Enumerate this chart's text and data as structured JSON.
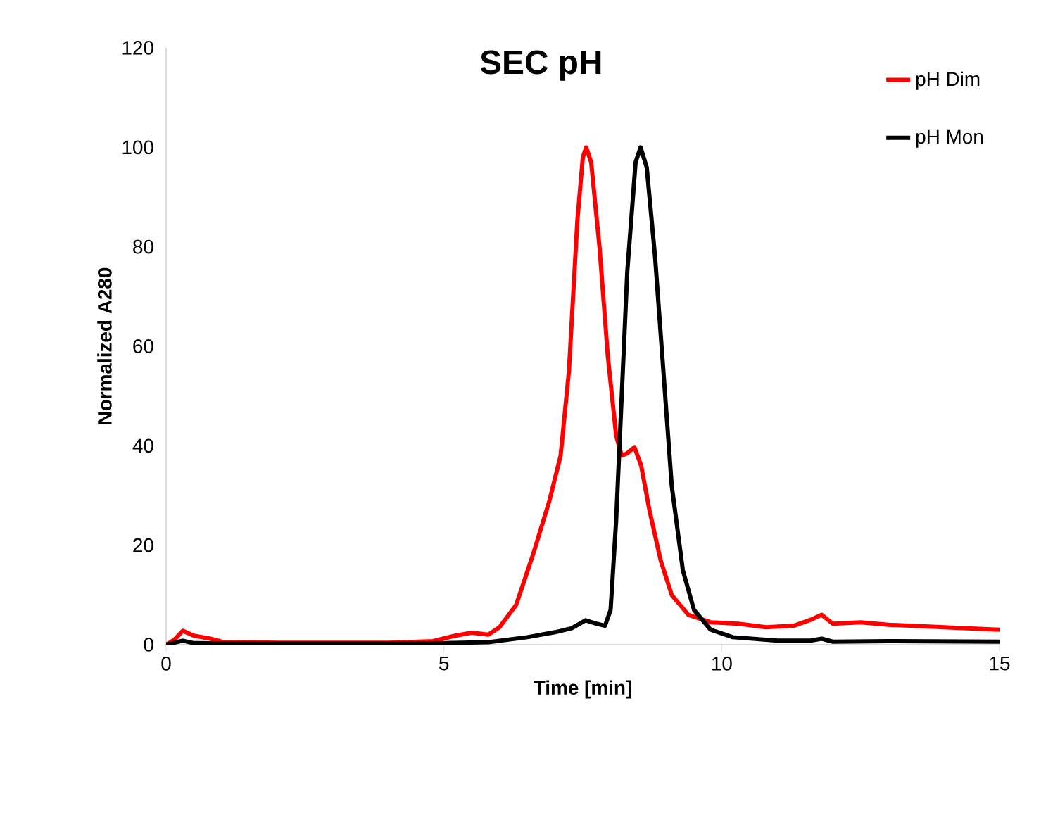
{
  "chart_data": {
    "type": "line",
    "title": "SEC pH",
    "xlabel": "Time [min]",
    "ylabel": "Normalized A280",
    "xlim": [
      0,
      15
    ],
    "xticks": [
      0,
      5,
      10,
      15
    ],
    "ylim": [
      0,
      120
    ],
    "yticks": [
      0,
      20,
      40,
      60,
      80,
      100,
      120
    ],
    "grid": false,
    "legend": "top right",
    "marker": "none",
    "line_style": "solid",
    "series": [
      {
        "name": "pH Dim",
        "color": "#ff0000",
        "x": [
          0,
          0.15,
          0.3,
          0.5,
          0.8,
          1,
          2,
          3,
          4,
          4.8,
          5.2,
          5.5,
          5.8,
          6.0,
          6.3,
          6.6,
          6.9,
          7.1,
          7.25,
          7.4,
          7.5,
          7.56,
          7.65,
          7.8,
          7.95,
          8.1,
          8.2,
          8.3,
          8.43,
          8.55,
          8.7,
          8.9,
          9.1,
          9.4,
          9.8,
          10.3,
          10.8,
          11.3,
          11.6,
          11.8,
          12.0,
          12.5,
          13,
          14,
          15
        ],
        "values": [
          0,
          1,
          2.8,
          1.8,
          1.2,
          0.6,
          0.4,
          0.4,
          0.4,
          0.7,
          1.8,
          2.4,
          2.0,
          3.5,
          8,
          18,
          29,
          38,
          55,
          85,
          98,
          100,
          97,
          80,
          58,
          42,
          38,
          38.5,
          39.7,
          36,
          27,
          17,
          10,
          6,
          4.5,
          4.2,
          3.5,
          3.8,
          5,
          6,
          4.2,
          4.5,
          4,
          3.5,
          3
        ]
      },
      {
        "name": "pH Mon",
        "color": "#000000",
        "x": [
          0,
          0.3,
          0.5,
          2,
          4,
          5,
          5.8,
          6.5,
          7.0,
          7.3,
          7.55,
          7.75,
          7.9,
          8.0,
          8.1,
          8.2,
          8.3,
          8.45,
          8.54,
          8.65,
          8.8,
          8.95,
          9.1,
          9.3,
          9.5,
          9.8,
          10.2,
          11,
          11.6,
          11.8,
          12,
          13,
          15
        ],
        "values": [
          0,
          0.8,
          0.3,
          0.2,
          0.2,
          0.3,
          0.5,
          1.5,
          2.5,
          3.3,
          4.9,
          4.2,
          3.8,
          7,
          25,
          50,
          75,
          97,
          100,
          96,
          78,
          55,
          32,
          15,
          7,
          3,
          1.5,
          0.8,
          0.8,
          1.2,
          0.6,
          0.7,
          0.6
        ]
      }
    ]
  }
}
